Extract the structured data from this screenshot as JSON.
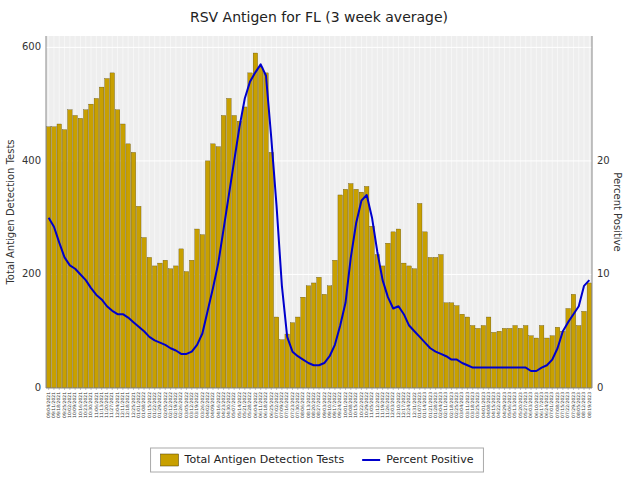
{
  "chart_data": {
    "type": "bar",
    "title": "RSV Antigen for FL (3 week average)",
    "ylabel": "Total Antigen Detection Tests",
    "y2label": "Percent Positive",
    "categories": [
      "09/04/2021",
      "09/11/2021",
      "09/18/2021",
      "09/25/2021",
      "10/02/2021",
      "10/09/2021",
      "10/16/2021",
      "10/23/2021",
      "10/30/2021",
      "11/06/2021",
      "11/13/2021",
      "11/20/2021",
      "11/27/2021",
      "12/04/2021",
      "12/11/2021",
      "12/18/2021",
      "12/25/2021",
      "01/01/2022",
      "01/08/2022",
      "01/15/2022",
      "01/22/2022",
      "01/29/2022",
      "02/05/2022",
      "02/12/2022",
      "02/19/2022",
      "02/26/2022",
      "03/05/2022",
      "03/12/2022",
      "03/19/2022",
      "03/26/2022",
      "04/02/2022",
      "04/09/2022",
      "04/16/2022",
      "04/23/2022",
      "04/30/2022",
      "05/07/2022",
      "05/14/2022",
      "05/21/2022",
      "05/28/2022",
      "06/04/2022",
      "06/11/2022",
      "06/18/2022",
      "06/25/2022",
      "07/02/2022",
      "07/09/2022",
      "07/16/2022",
      "07/23/2022",
      "07/30/2022",
      "08/06/2022",
      "08/13/2022",
      "08/20/2022",
      "08/27/2022",
      "09/03/2022",
      "09/10/2022",
      "09/17/2022",
      "09/24/2022",
      "10/01/2022",
      "10/08/2022",
      "10/15/2022",
      "10/22/2022",
      "10/29/2022",
      "11/05/2022",
      "11/12/2022",
      "11/19/2022",
      "11/26/2022",
      "12/03/2022",
      "12/10/2022",
      "12/17/2022",
      "12/24/2022",
      "12/31/2022",
      "01/07/2023",
      "01/14/2023",
      "01/21/2023",
      "01/28/2023",
      "02/04/2023",
      "02/11/2023",
      "02/18/2023",
      "02/25/2023",
      "03/04/2023",
      "03/11/2023",
      "03/18/2023",
      "03/25/2023",
      "04/01/2023",
      "04/08/2023",
      "04/15/2023",
      "04/22/2023",
      "04/29/2023",
      "05/06/2023",
      "05/13/2023",
      "05/20/2023",
      "05/27/2023",
      "06/03/2023",
      "06/10/2023",
      "06/17/2023",
      "06/24/2023",
      "07/01/2023",
      "07/08/2023",
      "07/15/2023",
      "07/22/2023",
      "07/29/2023",
      "08/05/2023",
      "08/12/2023",
      "08/19/2023"
    ],
    "series": [
      {
        "name": "Total Antigen Detection Tests",
        "type": "bar",
        "color": "#C8A000",
        "values": [
          460,
          460,
          465,
          455,
          490,
          480,
          475,
          490,
          500,
          510,
          530,
          545,
          555,
          490,
          465,
          430,
          415,
          320,
          265,
          230,
          215,
          220,
          225,
          210,
          215,
          245,
          205,
          225,
          280,
          270,
          400,
          430,
          425,
          480,
          510,
          480,
          470,
          495,
          555,
          590,
          565,
          555,
          415,
          125,
          85,
          95,
          115,
          125,
          160,
          180,
          185,
          195,
          165,
          180,
          225,
          340,
          350,
          360,
          350,
          345,
          355,
          285,
          235,
          215,
          255,
          275,
          280,
          220,
          215,
          210,
          325,
          275,
          230,
          230,
          235,
          150,
          150,
          145,
          130,
          125,
          110,
          105,
          110,
          125,
          98,
          100,
          105,
          105,
          110,
          105,
          110,
          92,
          88,
          110,
          88,
          92,
          107,
          100,
          140,
          165,
          110,
          135,
          185
        ]
      },
      {
        "name": "Percent Positive",
        "type": "line",
        "axis": "y2",
        "color": "#0000CC",
        "values": [
          15.0,
          14.2,
          12.8,
          11.5,
          10.8,
          10.5,
          10.0,
          9.5,
          8.8,
          8.2,
          7.8,
          7.2,
          6.8,
          6.5,
          6.5,
          6.2,
          5.8,
          5.4,
          5.0,
          4.5,
          4.2,
          4.0,
          3.8,
          3.5,
          3.3,
          3.0,
          3.0,
          3.2,
          3.8,
          4.8,
          6.8,
          8.8,
          11.0,
          14.0,
          17.0,
          20.0,
          23.0,
          25.5,
          27.0,
          27.8,
          28.5,
          27.5,
          22.0,
          16.0,
          9.0,
          4.5,
          3.2,
          2.8,
          2.5,
          2.2,
          2.0,
          2.0,
          2.2,
          2.8,
          3.8,
          5.5,
          7.5,
          11.5,
          14.5,
          16.5,
          17.0,
          15.0,
          12.0,
          9.5,
          8.0,
          7.0,
          7.2,
          6.5,
          5.5,
          5.0,
          4.5,
          4.0,
          3.5,
          3.2,
          3.0,
          2.8,
          2.5,
          2.5,
          2.2,
          2.0,
          1.8,
          1.8,
          1.8,
          1.8,
          1.8,
          1.8,
          1.8,
          1.8,
          1.8,
          1.8,
          1.8,
          1.5,
          1.5,
          1.8,
          2.0,
          2.5,
          3.5,
          5.0,
          5.8,
          6.5,
          7.2,
          9.0,
          9.5
        ]
      }
    ],
    "ylim": [
      0,
      620
    ],
    "yticks": [
      0,
      200,
      400,
      600
    ],
    "y2lim": [
      0,
      31
    ],
    "y2ticks": [
      0,
      10,
      20
    ],
    "grid": true,
    "legend": "bottom"
  }
}
